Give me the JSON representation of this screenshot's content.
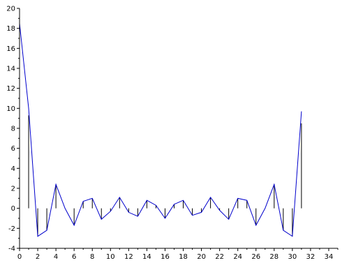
{
  "chart_data": {
    "type": "line",
    "title": "",
    "xlabel": "",
    "ylabel": "",
    "xlim": [
      0,
      35
    ],
    "ylim": [
      -4,
      20
    ],
    "x_ticks": [
      0,
      2,
      4,
      6,
      8,
      10,
      12,
      14,
      16,
      18,
      20,
      22,
      24,
      26,
      28,
      30,
      32,
      34
    ],
    "y_ticks": [
      -4,
      -2,
      0,
      2,
      4,
      6,
      8,
      10,
      12,
      14,
      16,
      18,
      20
    ],
    "grid": false,
    "series_color": "#0000cc",
    "stem_color": "#000000",
    "x": [
      0,
      1,
      2,
      3,
      4,
      5,
      6,
      7,
      8,
      9,
      10,
      11,
      12,
      13,
      14,
      15,
      16,
      17,
      18,
      19,
      20,
      21,
      22,
      23,
      24,
      25,
      26,
      27,
      28,
      29,
      30,
      31
    ],
    "series": [
      {
        "values": [
          18.5,
          10.0,
          -2.8,
          -2.2,
          2.4,
          0.0,
          -1.7,
          0.7,
          1.0,
          -1.1,
          -0.3,
          1.1,
          -0.4,
          -0.8,
          0.8,
          0.3,
          -1.0,
          0.4,
          0.8,
          -0.7,
          -0.4,
          1.1,
          -0.2,
          -1.1,
          1.0,
          0.8,
          -1.7,
          0.0,
          2.4,
          -2.2,
          -2.8,
          9.7
        ]
      }
    ],
    "stems": {
      "values": [
        18.5,
        9.3,
        -2.8,
        -2.2,
        2.4,
        0.0,
        -1.7,
        0.7,
        1.0,
        -1.1,
        -0.3,
        1.1,
        -0.4,
        -0.8,
        0.8,
        0.3,
        -1.0,
        0.4,
        0.8,
        -0.7,
        -0.4,
        1.1,
        -0.2,
        -1.1,
        1.0,
        0.8,
        -1.7,
        0.0,
        2.4,
        -2.2,
        -2.8,
        8.5
      ]
    }
  }
}
